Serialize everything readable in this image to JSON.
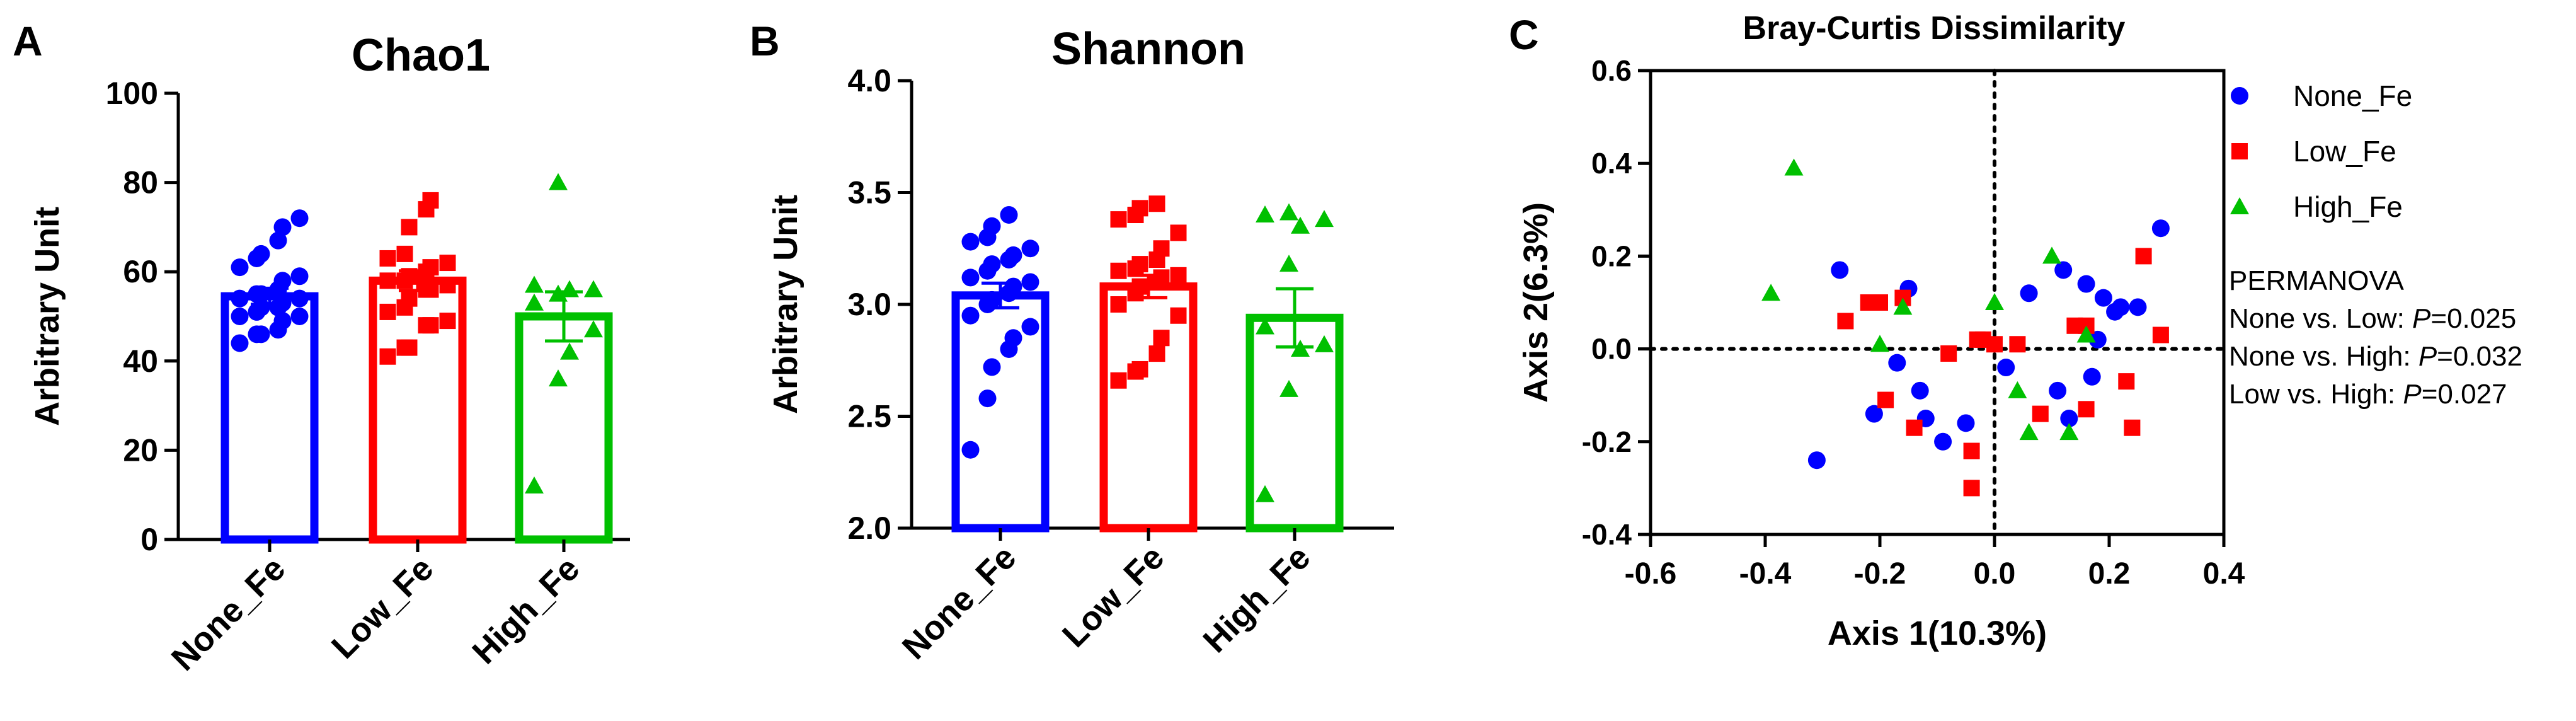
{
  "colors": {
    "None_Fe": "#0000ff",
    "Low_Fe": "#ff0000",
    "High_Fe": "#00c000"
  },
  "chart_data": [
    {
      "panel": "A",
      "type": "bar",
      "title": "Chao1",
      "ylabel": "Arbitrary Unit",
      "xlabel": "",
      "ylim": [
        0,
        100
      ],
      "yticks": [
        0,
        20,
        40,
        60,
        80,
        100
      ],
      "ytick_labels": [
        "0",
        "20",
        "40",
        "60",
        "80",
        "100"
      ],
      "categories": [
        "None_Fe",
        "Low_Fe",
        "High_Fe"
      ],
      "values": [
        54.5,
        58,
        50
      ],
      "sem": [
        1.8,
        2.2,
        5.5
      ],
      "points": [
        [
          44,
          46,
          46,
          47,
          49,
          50,
          50,
          51,
          52,
          52,
          53,
          54,
          54,
          55,
          55,
          56,
          58,
          59,
          61,
          63,
          64,
          67,
          70,
          72
        ],
        [
          41,
          43,
          43,
          48,
          48,
          49,
          51,
          52,
          54,
          56,
          56,
          57,
          58,
          58,
          59,
          60,
          61,
          62,
          63,
          64,
          70,
          74,
          76
        ],
        [
          12,
          36,
          42,
          47,
          53,
          55,
          56,
          56,
          57,
          80
        ]
      ]
    },
    {
      "panel": "B",
      "type": "bar",
      "title": "Shannon",
      "ylabel": "Arbitrary Unit",
      "xlabel": "",
      "ylim": [
        2.0,
        4.0
      ],
      "yticks": [
        2.0,
        2.5,
        3.0,
        3.5,
        4.0
      ],
      "ytick_labels": [
        "2.0",
        "2.5",
        "3.0",
        "3.5",
        "4.0"
      ],
      "categories": [
        "None_Fe",
        "Low_Fe",
        "High_Fe"
      ],
      "values": [
        3.04,
        3.08,
        2.94
      ],
      "sem": [
        0.055,
        0.05,
        0.13
      ],
      "points": [
        [
          2.35,
          2.58,
          2.72,
          2.8,
          2.85,
          2.9,
          2.95,
          3.0,
          3.02,
          3.05,
          3.08,
          3.1,
          3.12,
          3.15,
          3.18,
          3.2,
          3.22,
          3.25,
          3.28,
          3.3,
          3.35,
          3.4
        ],
        [
          2.66,
          2.7,
          2.71,
          2.78,
          2.85,
          2.95,
          3.0,
          3.05,
          3.08,
          3.1,
          3.12,
          3.13,
          3.15,
          3.16,
          3.18,
          3.2,
          3.25,
          3.32,
          3.38,
          3.4,
          3.43,
          3.45
        ],
        [
          2.15,
          2.62,
          2.8,
          2.82,
          2.9,
          3.18,
          3.35,
          3.38,
          3.4,
          3.41
        ]
      ]
    },
    {
      "panel": "C",
      "type": "scatter",
      "title": "Bray-Curtis Dissimilarity",
      "xlabel": "Axis 1(10.3%)",
      "ylabel": "Axis 2(6.3%)",
      "xlim": [
        -0.6,
        0.4
      ],
      "ylim": [
        -0.4,
        0.6
      ],
      "xticks": [
        -0.6,
        -0.4,
        -0.2,
        0.0,
        0.2,
        0.4
      ],
      "xtick_labels": [
        "-0.6",
        "-0.4",
        "-0.2",
        "0.0",
        "0.2",
        "0.4"
      ],
      "yticks": [
        -0.4,
        -0.2,
        0.0,
        0.2,
        0.4,
        0.6
      ],
      "ytick_labels": [
        "-0.4",
        "-0.2",
        "0.0",
        "0.2",
        "0.4",
        "0.6"
      ],
      "legend": [
        "None_Fe",
        "Low_Fe",
        "High_Fe"
      ],
      "legend_position": "right",
      "series": [
        {
          "name": "None_Fe",
          "marker": "circle",
          "x": [
            -0.31,
            -0.27,
            -0.15,
            -0.17,
            -0.13,
            -0.21,
            -0.12,
            -0.09,
            0.02,
            0.06,
            0.12,
            0.16,
            0.19,
            0.18,
            0.21,
            0.22,
            0.25,
            0.29,
            0.17,
            0.11,
            0.13,
            -0.05
          ],
          "y": [
            -0.24,
            0.17,
            0.13,
            -0.03,
            -0.09,
            -0.14,
            -0.15,
            -0.2,
            -0.04,
            0.12,
            0.17,
            0.14,
            0.11,
            0.02,
            0.08,
            0.09,
            0.09,
            0.26,
            -0.06,
            -0.09,
            -0.15,
            -0.16
          ]
        },
        {
          "name": "Low_Fe",
          "marker": "square",
          "x": [
            -0.26,
            -0.22,
            -0.2,
            -0.16,
            -0.14,
            -0.19,
            -0.08,
            -0.03,
            -0.02,
            0.0,
            -0.04,
            -0.04,
            0.04,
            0.08,
            0.14,
            0.16,
            0.16,
            0.23,
            0.24,
            0.26,
            0.29
          ],
          "y": [
            0.06,
            0.1,
            0.1,
            0.11,
            -0.17,
            -0.11,
            -0.01,
            0.02,
            0.02,
            0.01,
            -0.22,
            -0.3,
            0.01,
            -0.14,
            0.05,
            -0.13,
            0.05,
            -0.07,
            -0.17,
            0.2,
            0.03
          ]
        },
        {
          "name": "High_Fe",
          "marker": "triangle",
          "x": [
            -0.35,
            -0.39,
            -0.16,
            -0.2,
            0.0,
            0.04,
            0.1,
            0.06,
            0.13,
            0.16
          ],
          "y": [
            0.39,
            0.12,
            0.09,
            0.01,
            0.1,
            -0.09,
            0.2,
            -0.18,
            -0.18,
            0.03
          ]
        }
      ]
    }
  ],
  "panel_labels": [
    "A",
    "B",
    "C"
  ],
  "legend_labels": [
    "None_Fe",
    "Low_Fe",
    "High_Fe"
  ],
  "stats": {
    "heading": "PERMANOVA",
    "rows": [
      {
        "label": "None vs. Low: ",
        "p_symbol": "P",
        "p_value": "=0.025"
      },
      {
        "label": "None vs. High: ",
        "p_symbol": "P",
        "p_value": "=0.032"
      },
      {
        "label": "Low vs. High: ",
        "p_symbol": "P",
        "p_value": "=0.027"
      }
    ]
  }
}
